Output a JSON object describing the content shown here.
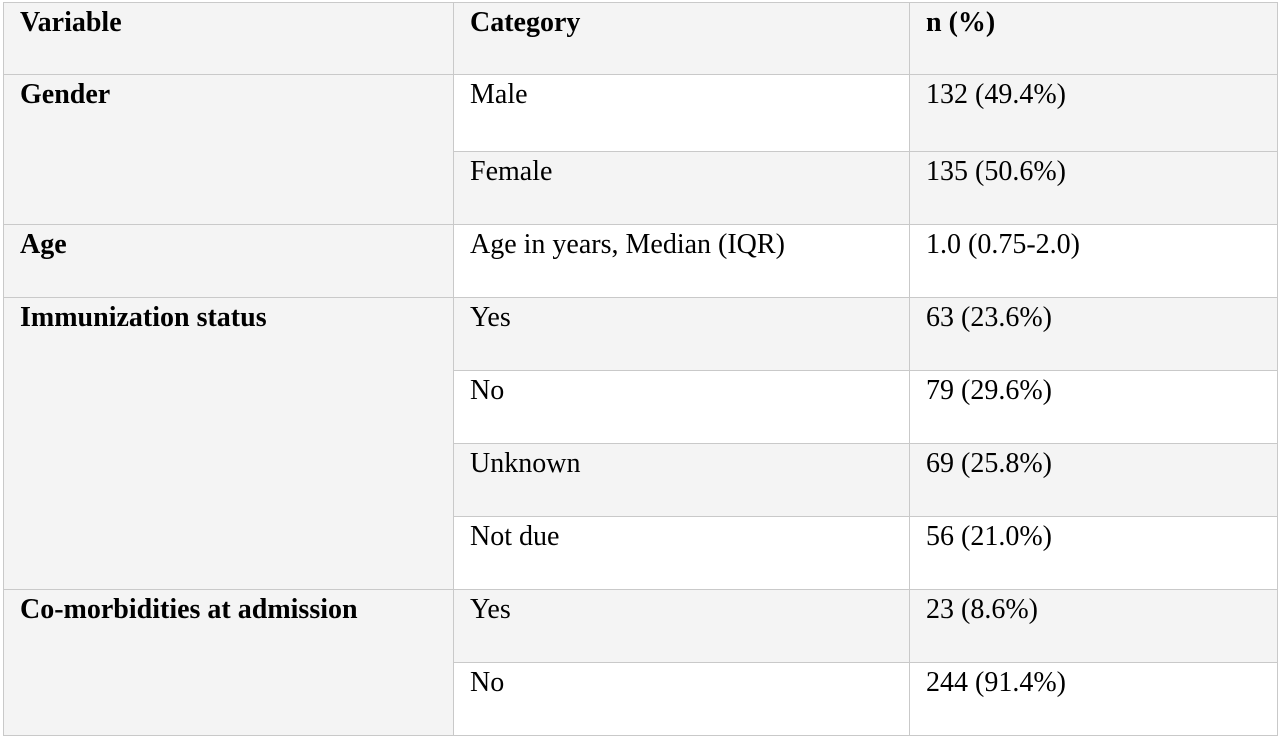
{
  "table": {
    "headers": [
      "Variable",
      "Category",
      "n (%)"
    ],
    "groups": [
      {
        "variable": "Gender",
        "rows": [
          {
            "category": "Male",
            "value": "132 (49.4%)"
          },
          {
            "category": "Female",
            "value": "135 (50.6%)"
          }
        ]
      },
      {
        "variable": "Age",
        "rows": [
          {
            "category": "Age in years, Median (IQR)",
            "value": "1.0 (0.75-2.0)"
          }
        ]
      },
      {
        "variable": "Immunization status",
        "rows": [
          {
            "category": "Yes",
            "value": "63 (23.6%)"
          },
          {
            "category": "No",
            "value": "79 (29.6%)"
          },
          {
            "category": "Unknown",
            "value": "69 (25.8%)"
          },
          {
            "category": "Not due",
            "value": "56 (21.0%)"
          }
        ]
      },
      {
        "variable": "Co-morbidities at admission",
        "rows": [
          {
            "category": "Yes",
            "value": "23 (8.6%)"
          },
          {
            "category": "No",
            "value": "244 (91.4%)"
          }
        ]
      }
    ]
  }
}
